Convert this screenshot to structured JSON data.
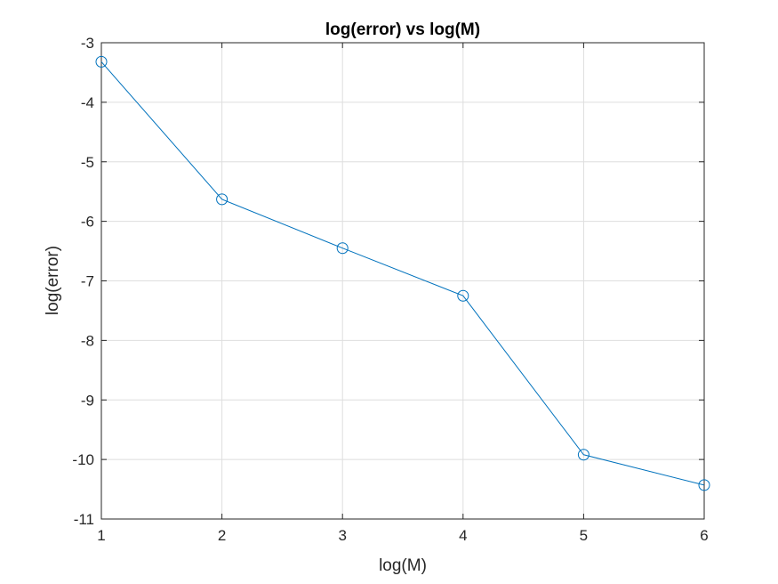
{
  "chart_data": {
    "type": "line",
    "title": "log(error) vs log(M)",
    "xlabel": "log(M)",
    "ylabel": "log(error)",
    "xlim": [
      1,
      6
    ],
    "ylim": [
      -11,
      -3
    ],
    "x_ticks": [
      "1",
      "2",
      "3",
      "4",
      "5",
      "6"
    ],
    "y_ticks": [
      "-3",
      "-4",
      "-5",
      "-6",
      "-7",
      "-8",
      "-9",
      "-10",
      "-11"
    ],
    "grid": true,
    "marker": "circle",
    "series": [
      {
        "color": "#0072bd",
        "x": [
          1,
          2,
          3,
          4,
          5,
          6
        ],
        "y": [
          -3.32,
          -5.63,
          -6.45,
          -7.25,
          -9.92,
          -10.43
        ]
      }
    ]
  }
}
